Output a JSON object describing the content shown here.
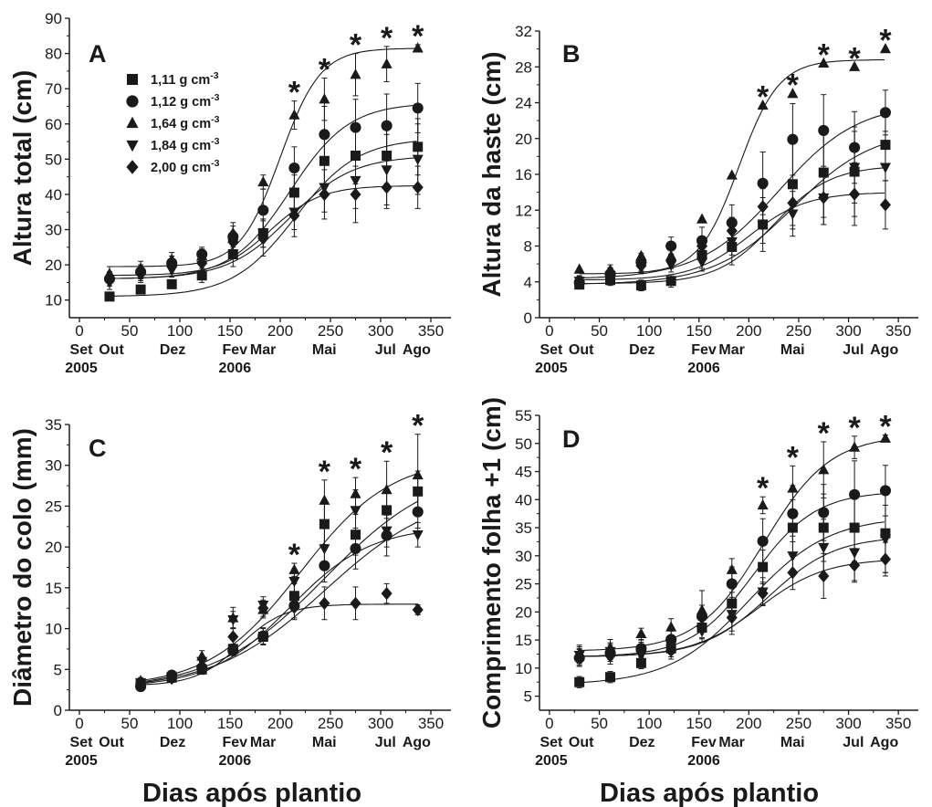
{
  "figure_xlabel": "Dias após plantio",
  "legend": [
    {
      "marker": "square",
      "label": "1,11 g cm",
      "exp": "-3"
    },
    {
      "marker": "circle",
      "label": "1,12 g cm",
      "exp": "-3"
    },
    {
      "marker": "triangle-up",
      "label": "1,64 g cm",
      "exp": "-3"
    },
    {
      "marker": "triangle-down",
      "label": "1,84 g cm",
      "exp": "-3"
    },
    {
      "marker": "diamond",
      "label": "2,00 g cm",
      "exp": "-3"
    }
  ],
  "month_labels": [
    {
      "label": "Set",
      "day": 0
    },
    {
      "label": "Out",
      "day": 30
    },
    {
      "label": "Dez",
      "day": 91
    },
    {
      "label": "Fev",
      "day": 153
    },
    {
      "label": "Mar",
      "day": 181
    },
    {
      "label": "Mai",
      "day": 242
    },
    {
      "label": "Jul",
      "day": 303
    },
    {
      "label": "Ago",
      "day": 334
    }
  ],
  "year_labels": [
    {
      "label": "2005",
      "day": 0
    },
    {
      "label": "2006",
      "day": 153
    }
  ],
  "colors": {
    "ink": "#1a1a1a",
    "background": "#ffffff"
  },
  "chart_data": [
    {
      "type": "scatter",
      "panel": "A",
      "ylabel": "Altura total (cm)",
      "xlim": [
        -10,
        370
      ],
      "xticks": [
        0,
        50,
        100,
        150,
        200,
        250,
        300,
        350
      ],
      "ylim": [
        5,
        90
      ],
      "yticks": [
        10,
        20,
        30,
        40,
        50,
        60,
        70,
        80,
        90
      ],
      "x": [
        30,
        61,
        92,
        122,
        153,
        183,
        214,
        244,
        275,
        306,
        337
      ],
      "series": [
        {
          "name": "1,11 g cm-3",
          "marker": "square",
          "values": [
            11,
            13,
            14.5,
            17,
            23,
            29,
            40.5,
            49.5,
            51,
            51,
            53.5
          ],
          "errors": [
            1,
            1,
            1,
            2,
            3.5,
            4,
            5,
            7,
            8,
            8,
            8
          ]
        },
        {
          "name": "1,12 g cm-3",
          "marker": "circle",
          "values": [
            16,
            18,
            20.5,
            23,
            28,
            35.5,
            47.5,
            57,
            59,
            59.5,
            64.5
          ],
          "errors": [
            2,
            2,
            2,
            2,
            3,
            6,
            6,
            8,
            8,
            9,
            7
          ]
        },
        {
          "name": "1,64 g cm-3",
          "marker": "triangle-up",
          "values": [
            17.5,
            19,
            21.5,
            22.5,
            29,
            43.5,
            62.5,
            67,
            74,
            77,
            81.5
          ],
          "errors": [
            2,
            2,
            2,
            2,
            3,
            2,
            4,
            6,
            6,
            5,
            1
          ]
        },
        {
          "name": "1,84 g cm-3",
          "marker": "triangle-down",
          "values": [
            15,
            17,
            18.5,
            20,
            26,
            29,
            35,
            42,
            44,
            47,
            50
          ],
          "errors": [
            2,
            2,
            2,
            2,
            3,
            4,
            5,
            7,
            8,
            10,
            10
          ]
        },
        {
          "name": "2,00 g cm-3",
          "marker": "diamond",
          "values": [
            16,
            17.5,
            19.5,
            20.5,
            26.5,
            27.5,
            34,
            40,
            40,
            42,
            42
          ],
          "errors": [
            2,
            2,
            2,
            2,
            3,
            5,
            6,
            7,
            8,
            6,
            6
          ]
        }
      ],
      "curves": [
        {
          "from": 30,
          "to": 337,
          "base": 11,
          "top": 56,
          "mid": 215,
          "k": 0.032
        },
        {
          "from": 30,
          "to": 337,
          "base": 16,
          "top": 66,
          "mid": 210,
          "k": 0.034
        },
        {
          "from": 30,
          "to": 337,
          "base": 19.5,
          "top": 81.5,
          "mid": 200,
          "k": 0.05
        },
        {
          "from": 30,
          "to": 337,
          "base": 16,
          "top": 51,
          "mid": 210,
          "k": 0.032
        },
        {
          "from": 30,
          "to": 337,
          "base": 17,
          "top": 42.5,
          "mid": 190,
          "k": 0.04
        }
      ],
      "significance_x": [
        214,
        244,
        275,
        306,
        337
      ],
      "significance_marks": [
        "*",
        "*",
        "*",
        "*",
        "*"
      ],
      "has_legend": true
    },
    {
      "type": "scatter",
      "panel": "B",
      "ylabel": "Altura da haste (cm)",
      "xlim": [
        -10,
        370
      ],
      "xticks": [
        0,
        50,
        100,
        150,
        200,
        250,
        300,
        350
      ],
      "ylim": [
        0,
        32
      ],
      "yticks": [
        0,
        4,
        8,
        12,
        16,
        20,
        24,
        28,
        32
      ],
      "x": [
        30,
        61,
        92,
        122,
        153,
        183,
        214,
        244,
        275,
        306,
        337
      ],
      "series": [
        {
          "name": "1,11 g cm-3",
          "marker": "square",
          "values": [
            3.7,
            4.2,
            3.6,
            4.1,
            7,
            7.9,
            10.4,
            14.9,
            16.2,
            16.3,
            19.3
          ],
          "errors": [
            0.5,
            0.6,
            0.6,
            0.7,
            1.5,
            2,
            3,
            5,
            5,
            5,
            4
          ]
        },
        {
          "name": "1,12 g cm-3",
          "marker": "circle",
          "values": [
            3.9,
            4.8,
            6.2,
            8,
            8.6,
            10.6,
            15,
            19.9,
            20.9,
            19,
            22.9
          ],
          "errors": [
            0.6,
            0.8,
            1,
            1,
            1.5,
            2,
            3.5,
            4,
            4,
            4,
            2.5
          ]
        },
        {
          "name": "1,64 g cm-3",
          "marker": "triangle-up",
          "values": [
            5.4,
            5.3,
            6.9,
            6.9,
            11,
            15.9,
            23.7,
            25,
            28.4,
            28,
            30
          ]
        },
        {
          "name": "1,84 g cm-3",
          "marker": "triangle-down",
          "values": [
            4.1,
            4.7,
            5.7,
            5.9,
            6.2,
            8.5,
            10.3,
            11.6,
            13.4,
            16.8,
            16.8
          ],
          "errors": [
            0.6,
            0.8,
            0.8,
            0.8,
            1,
            1.5,
            2,
            2.5,
            3,
            4,
            4
          ]
        },
        {
          "name": "2,00 g cm-3",
          "marker": "diamond",
          "values": [
            4,
            5.1,
            5.8,
            6.3,
            8,
            9.7,
            12.4,
            12.8,
            13.4,
            13.8,
            12.6
          ],
          "errors": [
            0.6,
            0.8,
            0.8,
            0.8,
            1,
            1.5,
            2,
            2.5,
            3,
            3.5,
            2.7
          ]
        }
      ],
      "curves": [
        {
          "from": 30,
          "to": 337,
          "base": 3.7,
          "top": 21,
          "mid": 245,
          "k": 0.025
        },
        {
          "from": 30,
          "to": 337,
          "base": 4.3,
          "top": 24,
          "mid": 230,
          "k": 0.025
        },
        {
          "from": 30,
          "to": 337,
          "base": 4.9,
          "top": 28.8,
          "mid": 190,
          "k": 0.05
        },
        {
          "from": 30,
          "to": 337,
          "base": 3.8,
          "top": 17,
          "mid": 225,
          "k": 0.035
        },
        {
          "from": 30,
          "to": 337,
          "base": 4.2,
          "top": 14,
          "mid": 200,
          "k": 0.035
        }
      ],
      "significance_x": [
        214,
        244,
        275,
        306,
        337
      ],
      "significance_marks": [
        "*",
        "*",
        "*",
        "*",
        "*"
      ],
      "has_legend": false
    },
    {
      "type": "scatter",
      "panel": "C",
      "ylabel": "Diâmetro do colo (mm)",
      "xlim": [
        -10,
        370
      ],
      "xticks": [
        0,
        50,
        100,
        150,
        200,
        250,
        300,
        350
      ],
      "ylim": [
        0,
        35
      ],
      "yticks": [
        0,
        5,
        10,
        15,
        20,
        25,
        30,
        35
      ],
      "x": [
        61,
        92,
        122,
        153,
        183,
        214,
        244,
        275,
        306,
        337
      ],
      "series": [
        {
          "name": "1,11 g cm-3",
          "marker": "square",
          "values": [
            3.3,
            4,
            5,
            7.5,
            9,
            14,
            22.8,
            21.5,
            24.5,
            26.8
          ],
          "errors": [
            0.4,
            0.5,
            0.6,
            0.6,
            1,
            1.5,
            2.5,
            2.5,
            2.5,
            2.5
          ]
        },
        {
          "name": "1,12 g cm-3",
          "marker": "circle",
          "values": [
            2.9,
            4.3,
            5.2,
            7.3,
            9.1,
            12.8,
            17.7,
            19.8,
            21.4,
            24.3
          ],
          "errors": [
            0.4,
            0.5,
            0.6,
            0.6,
            1,
            1.5,
            2,
            2.5,
            2.5,
            2
          ]
        },
        {
          "name": "1,64 g cm-3",
          "marker": "triangle-up",
          "values": [
            3.6,
            4.3,
            6.6,
            11.3,
            12.3,
            17.2,
            25.7,
            26.5,
            27,
            28.8
          ],
          "errors": [
            0.4,
            0.5,
            0.7,
            1.3,
            1,
            0.8,
            2.5,
            2,
            3.5,
            5
          ]
        },
        {
          "name": "1,84 g cm-3",
          "marker": "triangle-down",
          "values": [
            3.4,
            4.1,
            6,
            11.1,
            12.9,
            15.8,
            19.8,
            24.5,
            22,
            21.5
          ],
          "errors": [
            0.4,
            0.5,
            0.6,
            1,
            1,
            1.5,
            2.5,
            2.5,
            2,
            1.5
          ]
        },
        {
          "name": "2,00 g cm-3",
          "marker": "diamond",
          "values": [
            3.3,
            3.9,
            5.3,
            9,
            12.5,
            12.6,
            13.1,
            13.1,
            14.3,
            12.3
          ],
          "errors": [
            0.4,
            0.5,
            0.6,
            1,
            1,
            1.5,
            2,
            2,
            1.2,
            0.6
          ]
        }
      ],
      "curves": [
        {
          "from": 61,
          "to": 337,
          "base": 2.5,
          "top": 30,
          "mid": 245,
          "k": 0.018
        },
        {
          "from": 61,
          "to": 337,
          "base": 2.5,
          "top": 27,
          "mid": 245,
          "k": 0.018
        },
        {
          "from": 61,
          "to": 337,
          "base": 2.8,
          "top": 31,
          "mid": 220,
          "k": 0.022
        },
        {
          "from": 61,
          "to": 337,
          "base": 2.8,
          "top": 22.5,
          "mid": 210,
          "k": 0.025
        },
        {
          "from": 61,
          "to": 337,
          "base": 3.0,
          "top": 13,
          "mid": 160,
          "k": 0.045
        }
      ],
      "significance_x": [
        214,
        244,
        275,
        306,
        337
      ],
      "significance_marks": [
        "*",
        "*",
        "*",
        "*",
        "*"
      ],
      "has_legend": false
    },
    {
      "type": "scatter",
      "panel": "D",
      "ylabel": "Comprimento folha +1 (cm)",
      "xlim": [
        -10,
        370
      ],
      "xticks": [
        0,
        50,
        100,
        150,
        200,
        250,
        300,
        350
      ],
      "ylim": [
        2.5,
        55
      ],
      "yticks": [
        5,
        10,
        15,
        20,
        25,
        30,
        35,
        40,
        45,
        50,
        55
      ],
      "x": [
        30,
        61,
        92,
        122,
        153,
        183,
        214,
        244,
        275,
        306,
        337
      ],
      "series": [
        {
          "name": "1,11 g cm-3",
          "marker": "square",
          "values": [
            7.5,
            8.4,
            10.9,
            13.5,
            17.2,
            21.5,
            28,
            35,
            35,
            35,
            34
          ],
          "errors": [
            1,
            1,
            1,
            1.5,
            2,
            2,
            3,
            5,
            6,
            6,
            7
          ]
        },
        {
          "name": "1,12 g cm-3",
          "marker": "circle",
          "values": [
            11.8,
            12.7,
            13.5,
            15.1,
            19.2,
            25,
            32.6,
            37.5,
            37.7,
            40.9,
            41.6
          ],
          "errors": [
            1.5,
            1.5,
            1.5,
            1.5,
            2,
            3,
            4,
            5,
            5,
            6,
            4.5
          ]
        },
        {
          "name": "1,64 g cm-3",
          "marker": "triangle-up",
          "values": [
            12.6,
            13.6,
            16.1,
            17.3,
            20.3,
            27.5,
            39,
            42,
            45.3,
            49.3,
            50.9
          ],
          "errors": [
            1.5,
            1.5,
            1,
            1.5,
            3.5,
            2,
            1.5,
            4,
            5,
            2,
            0.6
          ]
        },
        {
          "name": "1,84 g cm-3",
          "marker": "triangle-down",
          "values": [
            12.3,
            13,
            12.3,
            14,
            16.6,
            19.6,
            23.6,
            30,
            31.5,
            30.6,
            33
          ],
          "errors": [
            1.5,
            1.5,
            1.5,
            1.5,
            2,
            3,
            2.5,
            3.5,
            5,
            5,
            6
          ]
        },
        {
          "name": "2,00 g cm-3",
          "marker": "diamond",
          "values": [
            12,
            12.2,
            13.1,
            13.1,
            17.4,
            19,
            23.3,
            27,
            26.4,
            28.3,
            29.4
          ],
          "errors": [
            1.5,
            1.5,
            1.5,
            1.5,
            2,
            3,
            2,
            3,
            4,
            3,
            3
          ]
        }
      ],
      "curves": [
        {
          "from": 30,
          "to": 337,
          "base": 7,
          "top": 37,
          "mid": 200,
          "k": 0.025
        },
        {
          "from": 30,
          "to": 337,
          "base": 12,
          "top": 41.5,
          "mid": 205,
          "k": 0.032
        },
        {
          "from": 30,
          "to": 337,
          "base": 13,
          "top": 51.5,
          "mid": 215,
          "k": 0.03
        },
        {
          "from": 30,
          "to": 337,
          "base": 12,
          "top": 33.5,
          "mid": 220,
          "k": 0.03
        },
        {
          "from": 30,
          "to": 337,
          "base": 12,
          "top": 29.5,
          "mid": 210,
          "k": 0.03
        }
      ],
      "significance_x": [
        214,
        244,
        275,
        306,
        337
      ],
      "significance_marks": [
        "*",
        "*",
        "*",
        "*",
        "*"
      ],
      "has_legend": false
    }
  ]
}
